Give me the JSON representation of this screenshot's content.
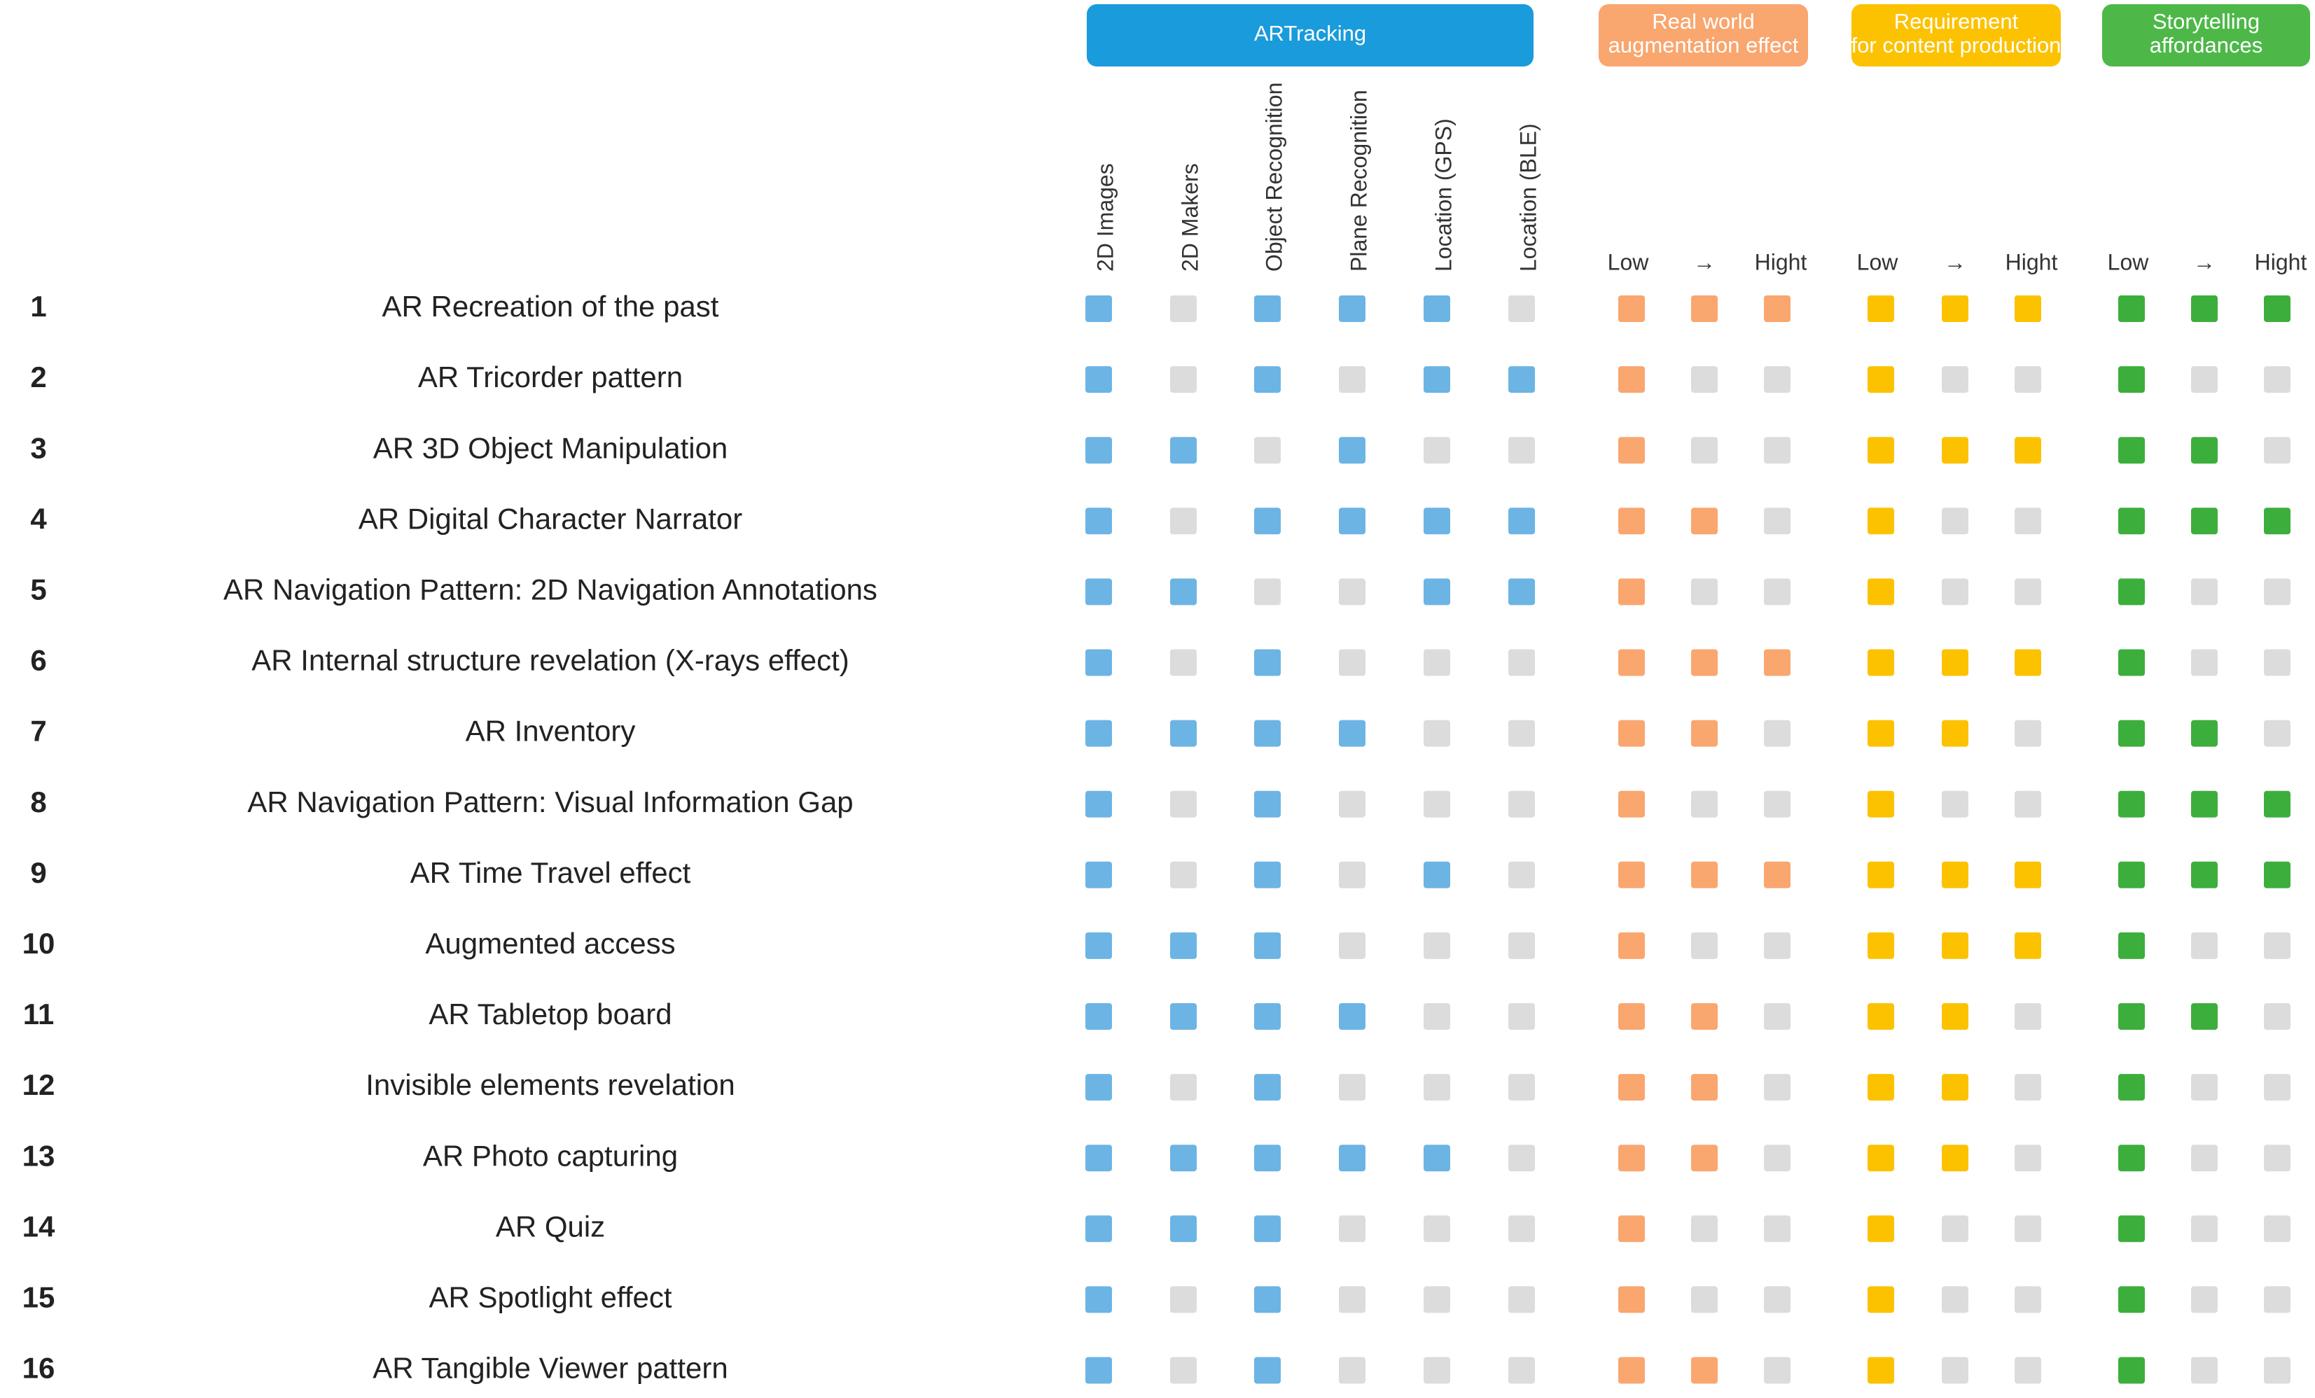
{
  "off_color": "#dcdcdc",
  "groups": [
    {
      "title": [
        "ARTracking"
      ],
      "color": "#1a9bdb",
      "mark_color": "#6cb4e4",
      "columns": [
        "2D Images",
        "2D Makers",
        "Object Recognition",
        "Plane Recognition",
        "Location (GPS)",
        "Location (BLE)"
      ]
    },
    {
      "title": [
        "Real world",
        "augmentation effect"
      ],
      "color": "#f9a66f",
      "mark_color": "#f9a66f",
      "scale": [
        "Low",
        "→",
        "Hight"
      ]
    },
    {
      "title": [
        "Requirement",
        "for content production"
      ],
      "color": "#fcc200",
      "mark_color": "#fcc200",
      "scale": [
        "Low",
        "→",
        "Hight"
      ]
    },
    {
      "title": [
        "Storytelling",
        "affordances"
      ],
      "color": "#4db848",
      "mark_color": "#3cae3c",
      "scale": [
        "Low",
        "→",
        "Hight"
      ]
    }
  ],
  "rows": [
    {
      "number": 1,
      "name": "AR Recreation of the past",
      "cells": [
        [
          1,
          0,
          1,
          1,
          1,
          0
        ],
        [
          1,
          1,
          1
        ],
        [
          1,
          1,
          1
        ],
        [
          1,
          1,
          1
        ]
      ]
    },
    {
      "number": 2,
      "name": "AR Tricorder pattern",
      "cells": [
        [
          1,
          0,
          1,
          0,
          1,
          1
        ],
        [
          1,
          0,
          0
        ],
        [
          1,
          0,
          0
        ],
        [
          1,
          0,
          0
        ]
      ]
    },
    {
      "number": 3,
      "name": "AR 3D Object Manipulation",
      "cells": [
        [
          1,
          1,
          0,
          1,
          0,
          0
        ],
        [
          1,
          0,
          0
        ],
        [
          1,
          1,
          1
        ],
        [
          1,
          1,
          0
        ]
      ]
    },
    {
      "number": 4,
      "name": "AR Digital Character Narrator",
      "cells": [
        [
          1,
          0,
          1,
          1,
          1,
          1
        ],
        [
          1,
          1,
          0
        ],
        [
          1,
          0,
          0
        ],
        [
          1,
          1,
          1
        ]
      ]
    },
    {
      "number": 5,
      "name": "AR Navigation Pattern: 2D Navigation Annotations",
      "cells": [
        [
          1,
          1,
          0,
          0,
          1,
          1
        ],
        [
          1,
          0,
          0
        ],
        [
          1,
          0,
          0
        ],
        [
          1,
          0,
          0
        ]
      ]
    },
    {
      "number": 6,
      "name": "AR Internal structure revelation (X-rays effect)",
      "cells": [
        [
          1,
          0,
          1,
          0,
          0,
          0
        ],
        [
          1,
          1,
          1
        ],
        [
          1,
          1,
          1
        ],
        [
          1,
          0,
          0
        ]
      ]
    },
    {
      "number": 7,
      "name": "AR Inventory",
      "cells": [
        [
          1,
          1,
          1,
          1,
          0,
          0
        ],
        [
          1,
          1,
          0
        ],
        [
          1,
          1,
          0
        ],
        [
          1,
          1,
          0
        ]
      ]
    },
    {
      "number": 8,
      "name": "AR Navigation Pattern: Visual Information Gap",
      "cells": [
        [
          1,
          0,
          1,
          0,
          0,
          0
        ],
        [
          1,
          0,
          0
        ],
        [
          1,
          0,
          0
        ],
        [
          1,
          1,
          1
        ]
      ]
    },
    {
      "number": 9,
      "name": "AR Time Travel effect",
      "cells": [
        [
          1,
          0,
          1,
          0,
          1,
          0
        ],
        [
          1,
          1,
          1
        ],
        [
          1,
          1,
          1
        ],
        [
          1,
          1,
          1
        ]
      ]
    },
    {
      "number": 10,
      "name": "Augmented access",
      "cells": [
        [
          1,
          1,
          1,
          0,
          0,
          0
        ],
        [
          1,
          0,
          0
        ],
        [
          1,
          1,
          1
        ],
        [
          1,
          0,
          0
        ]
      ]
    },
    {
      "number": 11,
      "name": "AR Tabletop board",
      "cells": [
        [
          1,
          1,
          1,
          1,
          0,
          0
        ],
        [
          1,
          1,
          0
        ],
        [
          1,
          1,
          0
        ],
        [
          1,
          1,
          0
        ]
      ]
    },
    {
      "number": 12,
      "name": "Invisible elements revelation",
      "cells": [
        [
          1,
          0,
          1,
          0,
          0,
          0
        ],
        [
          1,
          1,
          0
        ],
        [
          1,
          1,
          0
        ],
        [
          1,
          0,
          0
        ]
      ]
    },
    {
      "number": 13,
      "name": "AR Photo capturing",
      "cells": [
        [
          1,
          1,
          1,
          1,
          1,
          0
        ],
        [
          1,
          1,
          0
        ],
        [
          1,
          1,
          0
        ],
        [
          1,
          0,
          0
        ]
      ]
    },
    {
      "number": 14,
      "name": "AR Quiz",
      "cells": [
        [
          1,
          1,
          1,
          0,
          0,
          0
        ],
        [
          1,
          0,
          0
        ],
        [
          1,
          0,
          0
        ],
        [
          1,
          0,
          0
        ]
      ]
    },
    {
      "number": 15,
      "name": "AR Spotlight effect",
      "cells": [
        [
          1,
          0,
          1,
          0,
          0,
          0
        ],
        [
          1,
          0,
          0
        ],
        [
          1,
          0,
          0
        ],
        [
          1,
          0,
          0
        ]
      ]
    },
    {
      "number": 16,
      "name": "AR Tangible Viewer pattern",
      "cells": [
        [
          1,
          0,
          1,
          0,
          0,
          0
        ],
        [
          1,
          1,
          0
        ],
        [
          1,
          0,
          0
        ],
        [
          1,
          0,
          0
        ]
      ]
    }
  ]
}
